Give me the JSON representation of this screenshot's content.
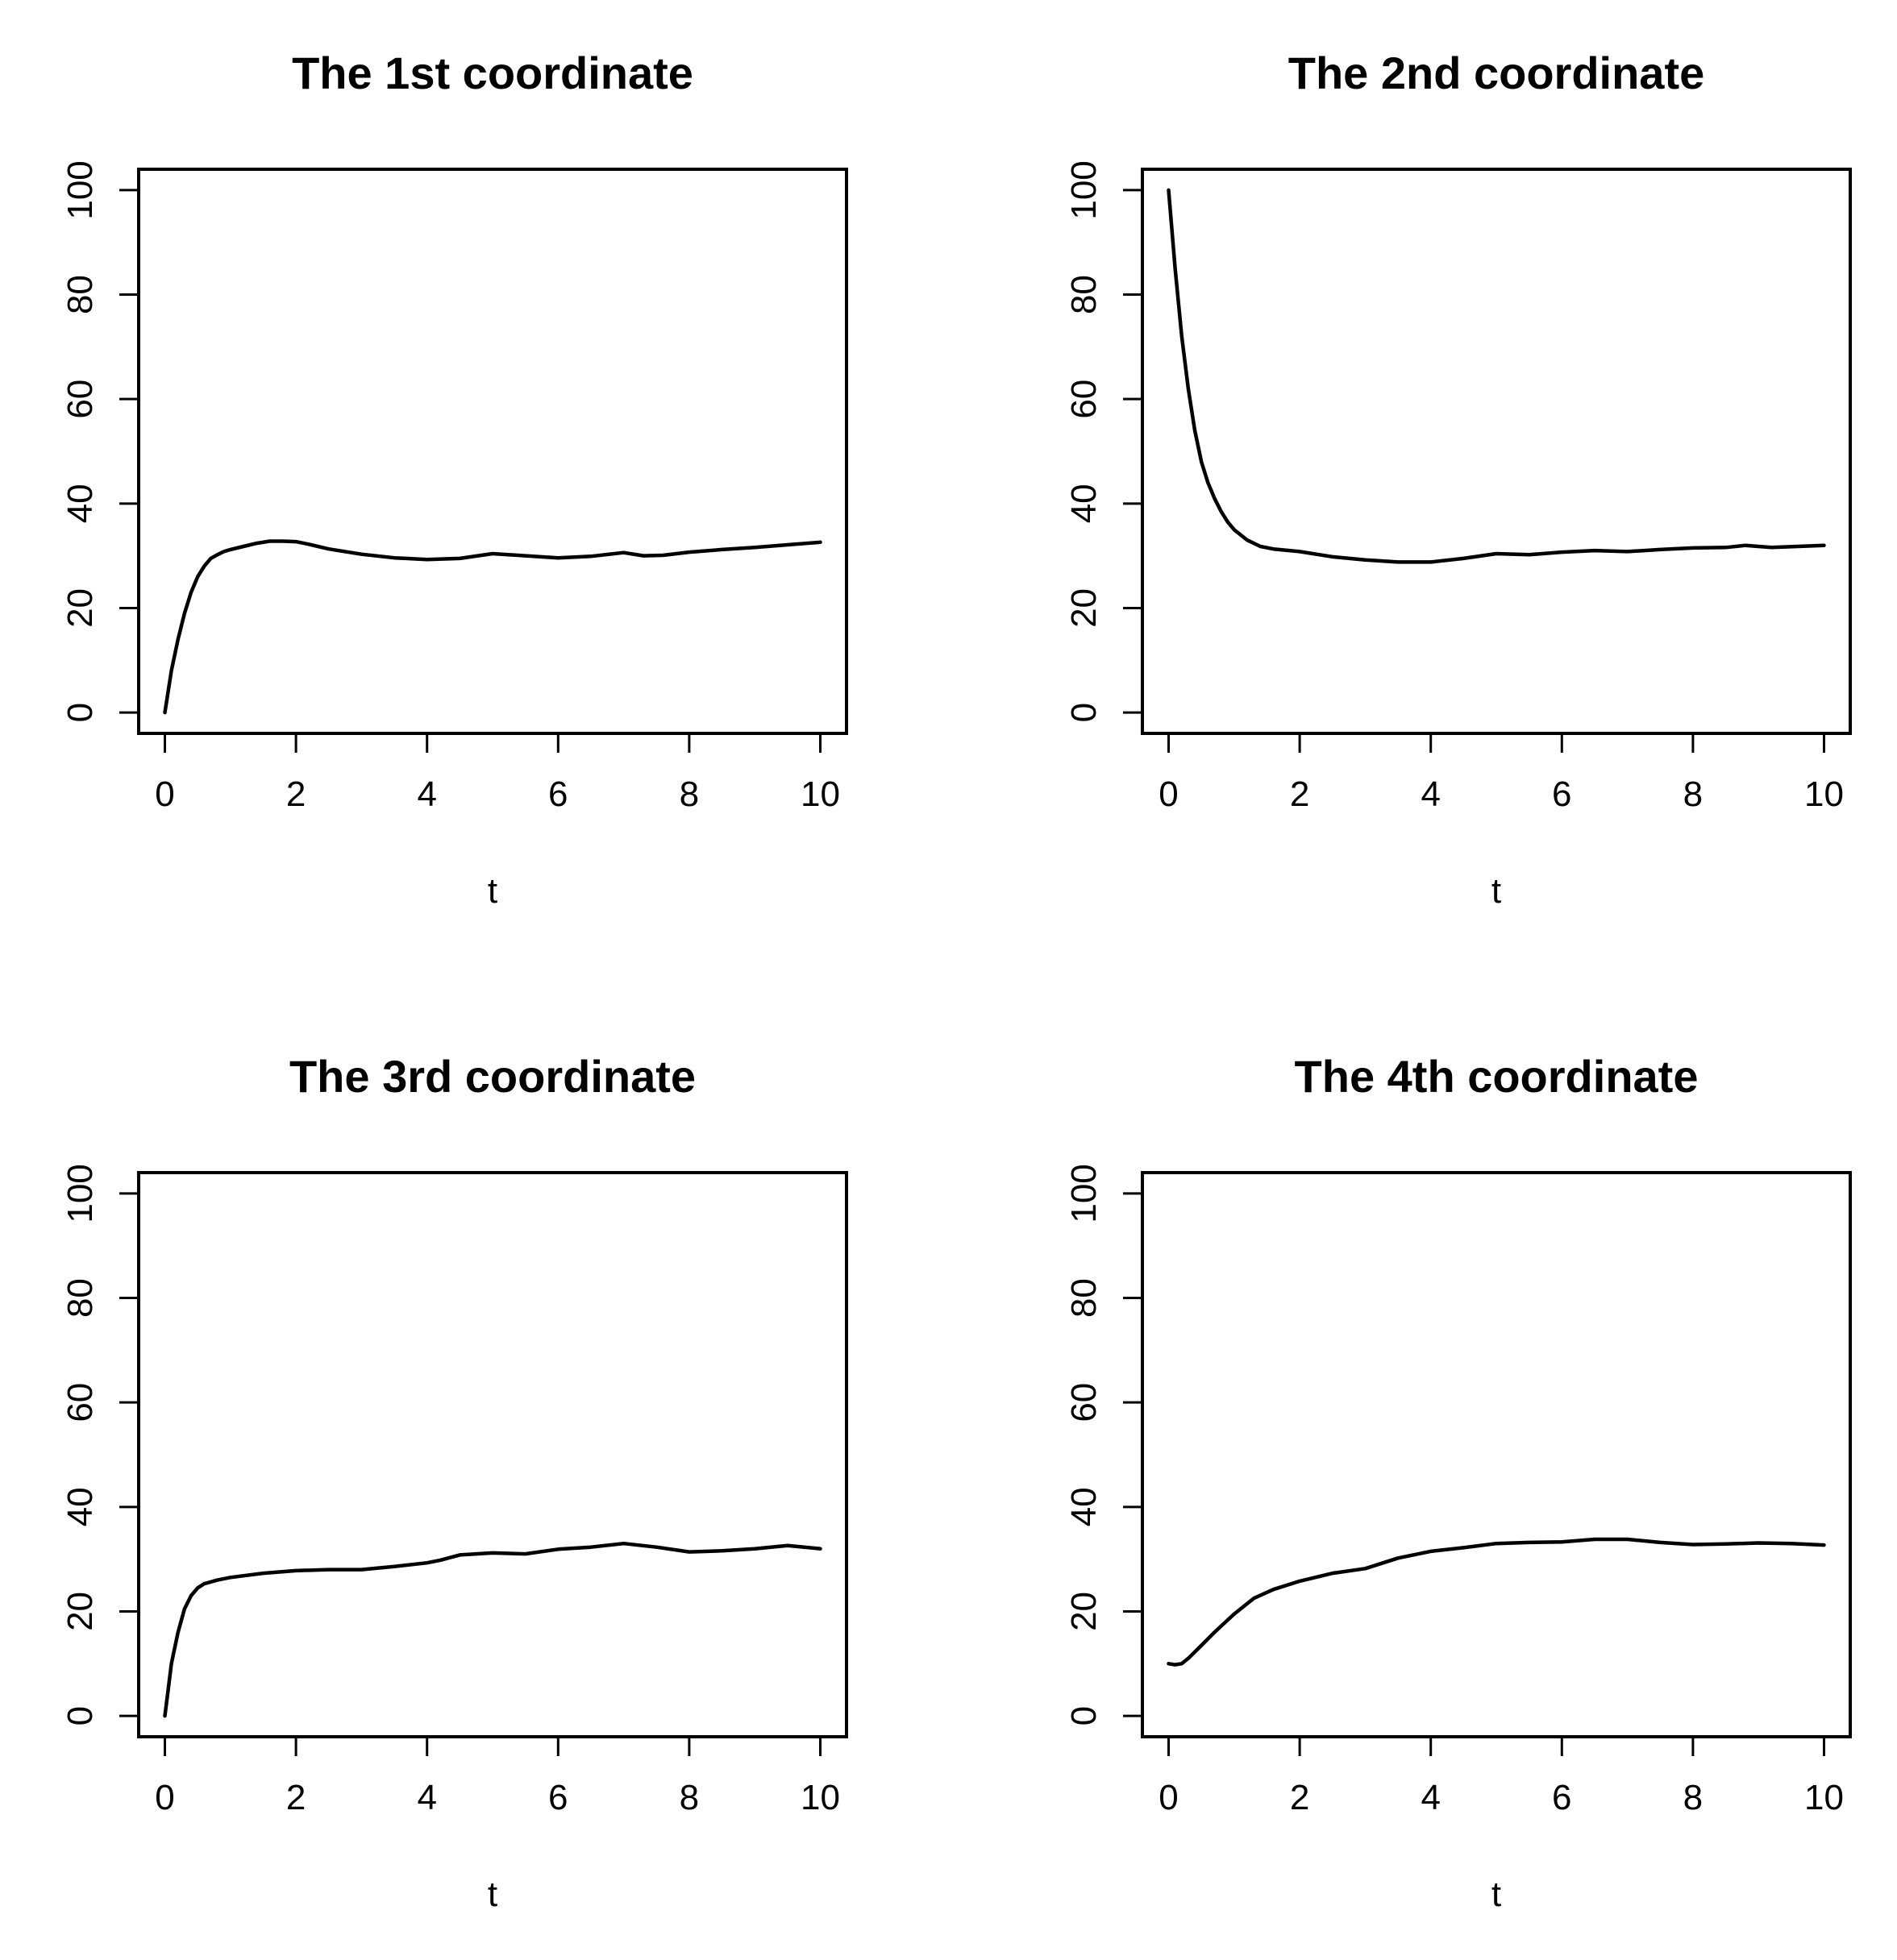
{
  "chart_data": [
    {
      "type": "line",
      "title": "The 1st coordinate",
      "xlabel": "t",
      "ylabel": "",
      "xlim": [
        0,
        10
      ],
      "ylim": [
        0,
        100
      ],
      "xticks": [
        "0",
        "2",
        "4",
        "6",
        "8",
        "10"
      ],
      "yticks": [
        "0",
        "20",
        "40",
        "60",
        "80",
        "100"
      ],
      "grid": false,
      "color": "#000000",
      "x": [
        0,
        0.1,
        0.2,
        0.3,
        0.4,
        0.5,
        0.6,
        0.7,
        0.8,
        0.9,
        1.0,
        1.2,
        1.4,
        1.6,
        1.8,
        2.0,
        2.2,
        2.5,
        3.0,
        3.5,
        4.0,
        4.5,
        5.0,
        5.5,
        6.0,
        6.5,
        7.0,
        7.3,
        7.6,
        8.0,
        8.5,
        9.0,
        9.5,
        10.0
      ],
      "y": [
        0,
        8,
        14,
        19,
        23,
        26,
        28,
        29.5,
        30.2,
        30.8,
        31.2,
        31.8,
        32.4,
        32.8,
        32.8,
        32.7,
        32.2,
        31.3,
        30.3,
        29.6,
        29.3,
        29.5,
        30.4,
        30.0,
        29.6,
        29.9,
        30.6,
        30.0,
        30.1,
        30.7,
        31.2,
        31.6,
        32.1,
        32.6
      ]
    },
    {
      "type": "line",
      "title": "The 2nd coordinate",
      "xlabel": "t",
      "ylabel": "",
      "xlim": [
        0,
        10
      ],
      "ylim": [
        0,
        100
      ],
      "xticks": [
        "0",
        "2",
        "4",
        "6",
        "8",
        "10"
      ],
      "yticks": [
        "0",
        "20",
        "40",
        "60",
        "80",
        "100"
      ],
      "grid": false,
      "color": "#000000",
      "x": [
        0,
        0.1,
        0.2,
        0.3,
        0.4,
        0.5,
        0.6,
        0.7,
        0.8,
        0.9,
        1.0,
        1.2,
        1.4,
        1.6,
        2.0,
        2.5,
        3.0,
        3.5,
        4.0,
        4.5,
        5.0,
        5.5,
        6.0,
        6.5,
        7.0,
        7.5,
        8.0,
        8.5,
        8.8,
        9.2,
        9.6,
        10.0
      ],
      "y": [
        100,
        85,
        72,
        62,
        54,
        48,
        44,
        41,
        38.5,
        36.5,
        35,
        33,
        31.8,
        31.3,
        30.8,
        29.8,
        29.2,
        28.8,
        28.8,
        29.5,
        30.4,
        30.2,
        30.7,
        31.0,
        30.8,
        31.2,
        31.5,
        31.6,
        32.0,
        31.6,
        31.8,
        32.0
      ]
    },
    {
      "type": "line",
      "title": "The 3rd coordinate",
      "xlabel": "t",
      "ylabel": "",
      "xlim": [
        0,
        10
      ],
      "ylim": [
        0,
        100
      ],
      "xticks": [
        "0",
        "2",
        "4",
        "6",
        "8",
        "10"
      ],
      "yticks": [
        "0",
        "20",
        "40",
        "60",
        "80",
        "100"
      ],
      "grid": false,
      "color": "#000000",
      "x": [
        0,
        0.05,
        0.1,
        0.2,
        0.3,
        0.4,
        0.5,
        0.6,
        0.8,
        1.0,
        1.5,
        2.0,
        2.5,
        3.0,
        3.5,
        4.0,
        4.2,
        4.5,
        5.0,
        5.5,
        6.0,
        6.5,
        7.0,
        7.5,
        8.0,
        8.5,
        9.0,
        9.5,
        10.0
      ],
      "y": [
        0,
        5,
        10,
        16,
        20.5,
        23,
        24.5,
        25.3,
        26.0,
        26.5,
        27.3,
        27.8,
        28.0,
        28.0,
        28.6,
        29.3,
        29.8,
        30.8,
        31.2,
        31.0,
        31.9,
        32.3,
        33.0,
        32.3,
        31.4,
        31.6,
        32.0,
        32.6,
        32.0
      ]
    },
    {
      "type": "line",
      "title": "The 4th coordinate",
      "xlabel": "t",
      "ylabel": "",
      "xlim": [
        0,
        10
      ],
      "ylim": [
        0,
        100
      ],
      "xticks": [
        "0",
        "2",
        "4",
        "6",
        "8",
        "10"
      ],
      "yticks": [
        "0",
        "20",
        "40",
        "60",
        "80",
        "100"
      ],
      "grid": false,
      "color": "#000000",
      "x": [
        0,
        0.1,
        0.2,
        0.3,
        0.5,
        0.7,
        1.0,
        1.3,
        1.6,
        2.0,
        2.5,
        3.0,
        3.5,
        4.0,
        4.5,
        5.0,
        5.5,
        6.0,
        6.5,
        7.0,
        7.5,
        8.0,
        8.5,
        9.0,
        9.5,
        10.0
      ],
      "y": [
        10,
        9.8,
        10.0,
        11.0,
        13.5,
        16.0,
        19.5,
        22.5,
        24.2,
        25.8,
        27.3,
        28.2,
        30.2,
        31.5,
        32.2,
        33.0,
        33.2,
        33.3,
        33.8,
        33.8,
        33.2,
        32.8,
        32.9,
        33.1,
        33.0,
        32.7
      ]
    }
  ]
}
